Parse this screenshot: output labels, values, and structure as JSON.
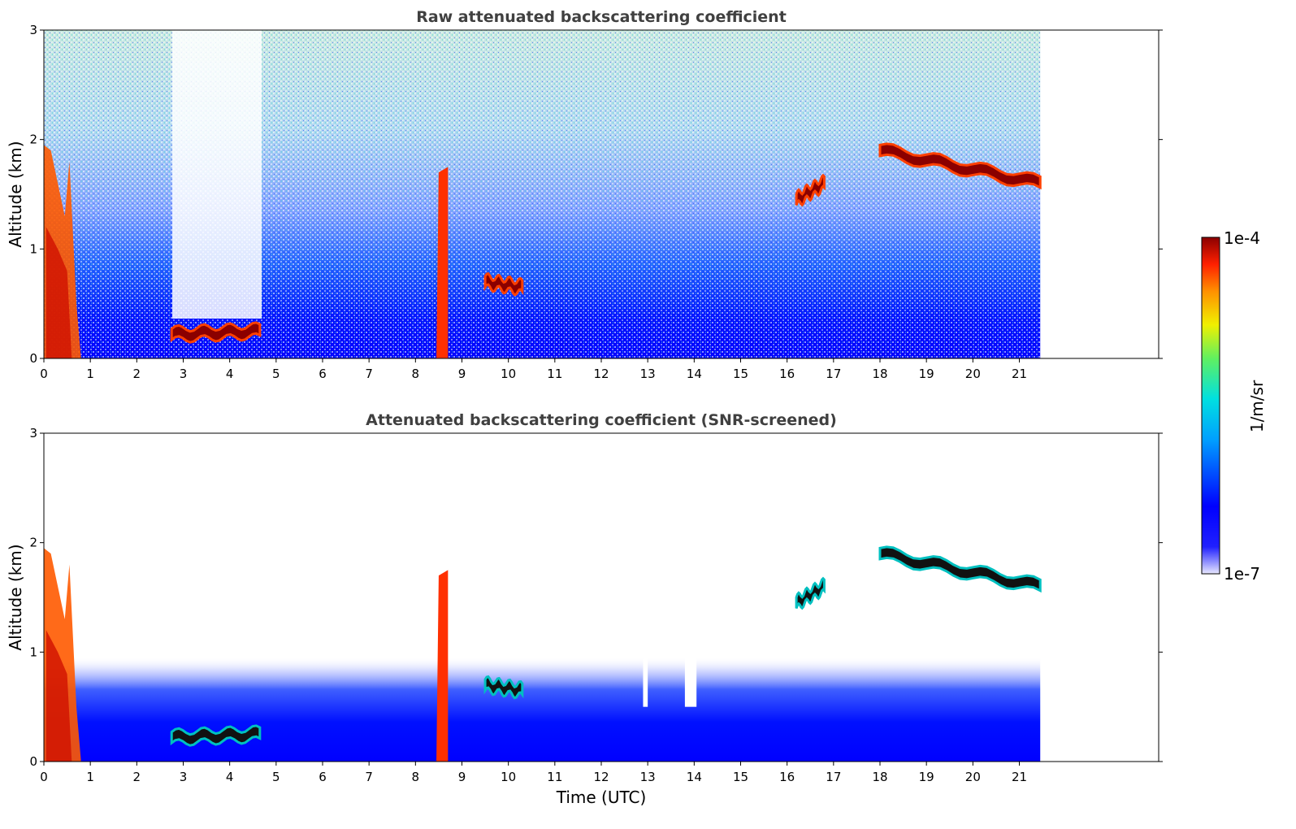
{
  "chart_data": [
    {
      "type": "heatmap",
      "title": "Raw attenuated backscattering coefficient",
      "xlabel": "",
      "ylabel": "Altitude (km)",
      "xlim": [
        0,
        24
      ],
      "ylim": [
        0,
        3
      ],
      "data_xmax": 21.45,
      "xticks": [
        "0",
        "1",
        "2",
        "3",
        "4",
        "5",
        "6",
        "7",
        "8",
        "9",
        "10",
        "11",
        "12",
        "13",
        "14",
        "15",
        "16",
        "17",
        "18",
        "19",
        "20",
        "21"
      ],
      "yticks": [
        "0",
        "1",
        "2",
        "3"
      ],
      "cloud_layers": [
        {
          "t0": 18.0,
          "t1": 21.45,
          "alt0": 1.9,
          "alt1": 1.6
        },
        {
          "t0": 2.75,
          "t1": 4.65,
          "alt0": 0.22,
          "alt1": 0.25
        },
        {
          "t0": 9.5,
          "t1": 10.3,
          "alt0": 0.7,
          "alt1": 0.65
        },
        {
          "t0": 16.2,
          "t1": 16.8,
          "alt0": 1.45,
          "alt1": 1.6
        },
        {
          "t0": 8.45,
          "t1": 8.7,
          "alt0": 0.0,
          "alt1": 1.7
        }
      ],
      "grid": false
    },
    {
      "type": "heatmap",
      "title": "Attenuated backscattering coefficient (SNR-screened)",
      "xlabel": "Time (UTC)",
      "ylabel": "Altitude (km)",
      "xlim": [
        0,
        24
      ],
      "ylim": [
        0,
        3
      ],
      "data_xmax": 21.45,
      "xticks": [
        "0",
        "1",
        "2",
        "3",
        "4",
        "5",
        "6",
        "7",
        "8",
        "9",
        "10",
        "11",
        "12",
        "13",
        "14",
        "15",
        "16",
        "17",
        "18",
        "19",
        "20",
        "21"
      ],
      "yticks": [
        "0",
        "1",
        "2",
        "3"
      ],
      "grid": false
    }
  ],
  "colorbar": {
    "label": "1/m/sr",
    "max_label": "1e-4",
    "min_label": "1e-7",
    "colors": [
      "#e8e8ff",
      "#0000ff",
      "#00a0ff",
      "#00e0e0",
      "#60f060",
      "#f0f000",
      "#ff9000",
      "#ff2000",
      "#8b0000"
    ]
  }
}
